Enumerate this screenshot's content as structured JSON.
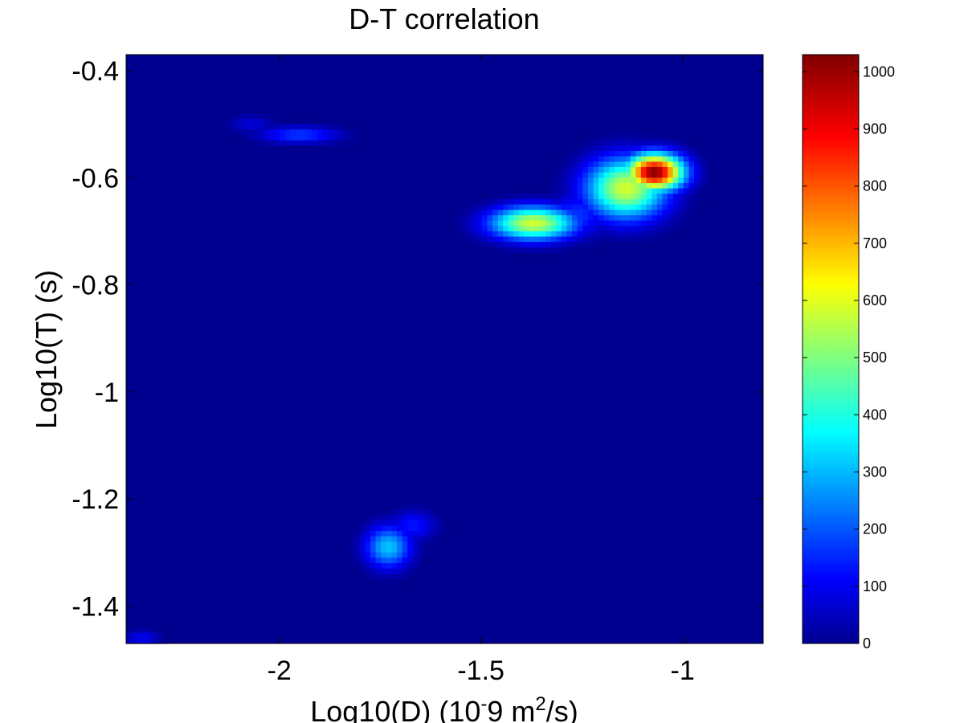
{
  "chart_data": {
    "type": "heatmap",
    "title": "D-T correlation",
    "xlabel": {
      "prefix": "Log10(D) (10",
      "superscript1": "-",
      "middle": "9 m",
      "superscript2": "2",
      "suffix": "/s)"
    },
    "ylabel": "Log10(T) (s)",
    "xlim": [
      -2.38,
      -0.8
    ],
    "ylim": [
      -1.47,
      -0.37
    ],
    "x_ticks": [
      -2,
      -1.5,
      -1
    ],
    "x_tick_labels": [
      "-2",
      "-1.5",
      "-1"
    ],
    "y_ticks": [
      -0.4,
      -0.6,
      -0.8,
      -1,
      -1.2,
      -1.4
    ],
    "y_tick_labels": [
      "-0.4",
      "-0.6",
      "-0.8",
      "-1",
      "-1.2",
      "-1.4"
    ],
    "colormap": "jet",
    "colorbar": {
      "range": [
        0,
        1030
      ],
      "ticks": [
        0,
        100,
        200,
        300,
        400,
        500,
        600,
        700,
        800,
        900,
        1000
      ],
      "tick_labels": [
        "0",
        "100",
        "200",
        "300",
        "400",
        "500",
        "600",
        "700",
        "800",
        "900",
        "1000"
      ]
    },
    "peaks": [
      {
        "x": -1.07,
        "y": -0.59,
        "value": 1030,
        "sx": 0.05,
        "sy": 0.024
      },
      {
        "x": -1.14,
        "y": -0.62,
        "value": 600,
        "sx": 0.07,
        "sy": 0.04
      },
      {
        "x": -1.37,
        "y": -0.685,
        "value": 600,
        "sx": 0.075,
        "sy": 0.022
      },
      {
        "x": -1.26,
        "y": -0.67,
        "value": 180,
        "sx": 0.05,
        "sy": 0.03
      },
      {
        "x": -1.73,
        "y": -1.29,
        "value": 330,
        "sx": 0.04,
        "sy": 0.028
      },
      {
        "x": -1.67,
        "y": -1.25,
        "value": 150,
        "sx": 0.04,
        "sy": 0.02
      },
      {
        "x": -1.95,
        "y": -0.52,
        "value": 190,
        "sx": 0.07,
        "sy": 0.011
      },
      {
        "x": -2.07,
        "y": -0.5,
        "value": 90,
        "sx": 0.04,
        "sy": 0.012
      },
      {
        "x": -2.34,
        "y": -1.46,
        "value": 120,
        "sx": 0.03,
        "sy": 0.01
      }
    ]
  }
}
